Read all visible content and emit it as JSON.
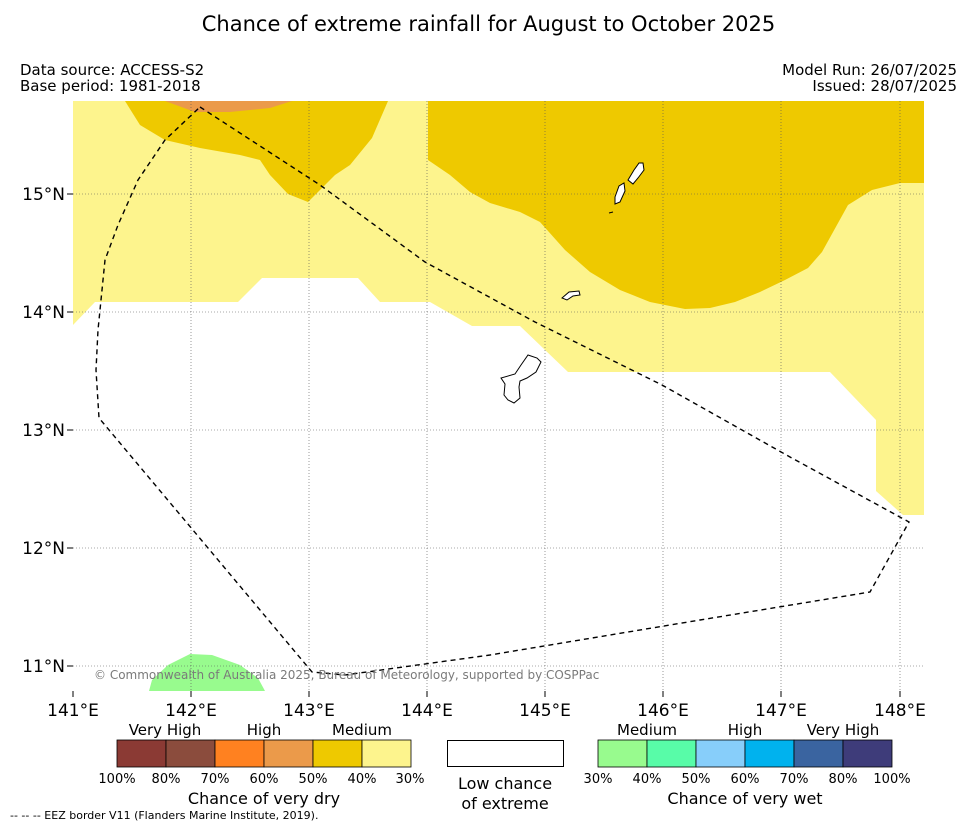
{
  "title": "Chance of extreme rainfall for August to October 2025",
  "meta": {
    "data_source": "Data source: ACCESS-S2",
    "base_period": "Base period: 1981-2018",
    "model_run": "Model Run: 26/07/2025",
    "issued": "Issued: 28/07/2025"
  },
  "map": {
    "lon_ticks": [
      "141°E",
      "142°E",
      "143°E",
      "144°E",
      "145°E",
      "146°E",
      "147°E",
      "148°E"
    ],
    "lat_ticks": [
      "15°N",
      "14°N",
      "13°N",
      "12°N",
      "11°N"
    ],
    "copyright": "© Commonwealth of Australia 2025, Bureau of Meteorology, supported by COSPPac",
    "colors": {
      "medium_dry": "#fdf48d",
      "high_dry_40_50": "#eec900",
      "high_dry_50_60": "#eb9a4a",
      "medium_wet": "#98fb8e",
      "border": "#000000"
    }
  },
  "legend": {
    "dry": {
      "groups": [
        "Very High",
        "High",
        "Medium"
      ],
      "colors": [
        "#8b3a34",
        "#8b4c3d",
        "#ff8120",
        "#eb9a4a",
        "#eec900",
        "#fdf48d"
      ],
      "ticks": [
        "100%",
        "80%",
        "70%",
        "60%",
        "50%",
        "40%",
        "30%"
      ],
      "caption": "Chance of very dry"
    },
    "low": {
      "line1": "Low chance",
      "line2": "of extreme"
    },
    "wet": {
      "groups": [
        "Medium",
        "High",
        "Very High"
      ],
      "colors": [
        "#98fb8e",
        "#58fca8",
        "#87cefa",
        "#00b2ee",
        "#3a64a0",
        "#3e3c7a"
      ],
      "ticks": [
        "30%",
        "40%",
        "50%",
        "60%",
        "70%",
        "80%",
        "100%"
      ],
      "caption": "Chance of very wet"
    }
  },
  "footer": "--  --  -- EEZ border V11 (Flanders Marine Institute, 2019)."
}
